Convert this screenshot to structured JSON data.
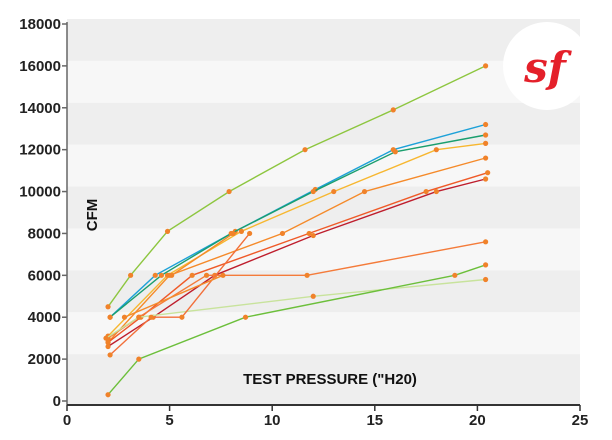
{
  "chart_data": {
    "type": "line",
    "xlabel": "TEST PRESSURE (\"H20)",
    "ylabel": "CFM",
    "xlim": [
      0,
      25
    ],
    "ylim": [
      0,
      18000
    ],
    "x_ticks": [
      "0",
      "5",
      "10",
      "15",
      "20",
      "25"
    ],
    "y_ticks": [
      "0",
      "2000",
      "4000",
      "6000",
      "8000",
      "10000",
      "12000",
      "14000",
      "16000",
      "18000"
    ],
    "grid": "horizontal bands",
    "legend": "none",
    "series": [
      {
        "color": "#8dc63f",
        "points": [
          [
            2.0,
            4500
          ],
          [
            3.1,
            6000
          ],
          [
            4.9,
            8100
          ],
          [
            7.9,
            10000
          ],
          [
            11.6,
            12000
          ],
          [
            15.9,
            13900
          ],
          [
            20.4,
            16000
          ]
        ]
      },
      {
        "color": "#1da1d8",
        "points": [
          [
            2.1,
            4000
          ],
          [
            4.3,
            6000
          ],
          [
            8.2,
            8100
          ],
          [
            12.1,
            10100
          ],
          [
            15.9,
            12000
          ],
          [
            20.4,
            13200
          ]
        ]
      },
      {
        "color": "#1a9e6e",
        "points": [
          [
            2.1,
            4000
          ],
          [
            4.6,
            6000
          ],
          [
            8.0,
            8000
          ],
          [
            12.0,
            10000
          ],
          [
            16.0,
            11900
          ],
          [
            20.4,
            12700
          ]
        ]
      },
      {
        "color": "#f7b730",
        "points": [
          [
            2.0,
            3100
          ],
          [
            4.9,
            6000
          ],
          [
            8.5,
            8100
          ],
          [
            13.0,
            10000
          ],
          [
            18.0,
            12000
          ],
          [
            20.4,
            12300
          ]
        ]
      },
      {
        "color": "#f58a2a",
        "points": [
          [
            2.0,
            2800
          ],
          [
            5.0,
            6000
          ],
          [
            10.5,
            8000
          ],
          [
            14.5,
            10000
          ],
          [
            20.4,
            11600
          ]
        ]
      },
      {
        "color": "#ef5a28",
        "points": [
          [
            2.0,
            2800
          ],
          [
            3.6,
            4000
          ],
          [
            6.1,
            6000
          ],
          [
            11.8,
            8000
          ],
          [
            17.5,
            10000
          ],
          [
            20.5,
            10900
          ]
        ]
      },
      {
        "color": "#be1e2d",
        "points": [
          [
            2.0,
            2600
          ],
          [
            4.2,
            4000
          ],
          [
            7.2,
            6000
          ],
          [
            12.0,
            7900
          ],
          [
            18.0,
            10000
          ],
          [
            20.4,
            10600
          ]
        ]
      },
      {
        "color": "#f47b3a",
        "points": [
          [
            2.0,
            3000
          ],
          [
            3.5,
            4000
          ],
          [
            6.8,
            6000
          ],
          [
            11.7,
            6000
          ],
          [
            20.4,
            7600
          ]
        ]
      },
      {
        "color": "#c8e39c",
        "points": [
          [
            1.9,
            3000
          ],
          [
            3.5,
            4000
          ],
          [
            12.0,
            5000
          ],
          [
            20.4,
            5800
          ]
        ]
      },
      {
        "color": "#6cbf3b",
        "points": [
          [
            2.0,
            300
          ],
          [
            3.5,
            2000
          ],
          [
            8.7,
            4000
          ],
          [
            18.9,
            6000
          ],
          [
            20.4,
            6500
          ]
        ]
      },
      {
        "color": "#f26f3a",
        "points": [
          [
            2.1,
            2200
          ],
          [
            4.1,
            4000
          ],
          [
            5.6,
            4000
          ],
          [
            8.9,
            8000
          ]
        ]
      },
      {
        "color": "#f58a2a",
        "points": [
          [
            2.8,
            4000
          ],
          [
            7.6,
            6000
          ]
        ]
      },
      {
        "color": "#f58a2a",
        "points": [
          [
            5.1,
            6000
          ],
          [
            8.1,
            8000
          ]
        ]
      }
    ]
  },
  "logo": {
    "text": "sf",
    "color": "#e4202a"
  }
}
